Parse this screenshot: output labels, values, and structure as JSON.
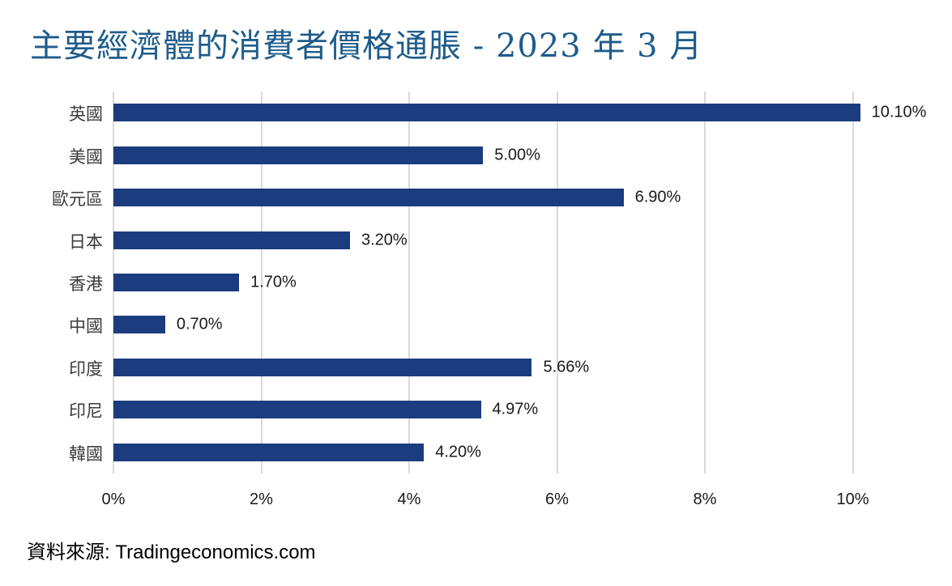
{
  "title": "主要經濟體的消費者價格通脹 - 2023 年 3 月",
  "source": "資料來源: Tradingeconomics.com",
  "colors": {
    "bar": "#1B3C7E",
    "title": "#1F5C8B",
    "grid": "#D9D9D9",
    "category_label": "#3A3A3A",
    "value_label": "#1A1A1A"
  },
  "chart_data": {
    "type": "bar",
    "orientation": "horizontal",
    "title": "主要經濟體的消費者價格通脹 - 2023 年 3 月",
    "categories": [
      "英國",
      "美國",
      "歐元區",
      "日本",
      "香港",
      "中國",
      "印度",
      "印尼",
      "韓國"
    ],
    "values": [
      10.1,
      5.0,
      6.9,
      3.2,
      1.7,
      0.7,
      5.66,
      4.97,
      4.2
    ],
    "value_labels": [
      "10.10%",
      "5.00%",
      "6.90%",
      "3.20%",
      "1.70%",
      "0.70%",
      "5.66%",
      "4.97%",
      "4.20%"
    ],
    "x_ticks": [
      "0%",
      "2%",
      "4%",
      "6%",
      "8%",
      "10%"
    ],
    "x_tick_values": [
      0,
      2,
      4,
      6,
      8,
      10
    ],
    "xlim": [
      0,
      11.1
    ],
    "grid": true,
    "legend": "none",
    "source": "資料來源: Tradingeconomics.com"
  }
}
